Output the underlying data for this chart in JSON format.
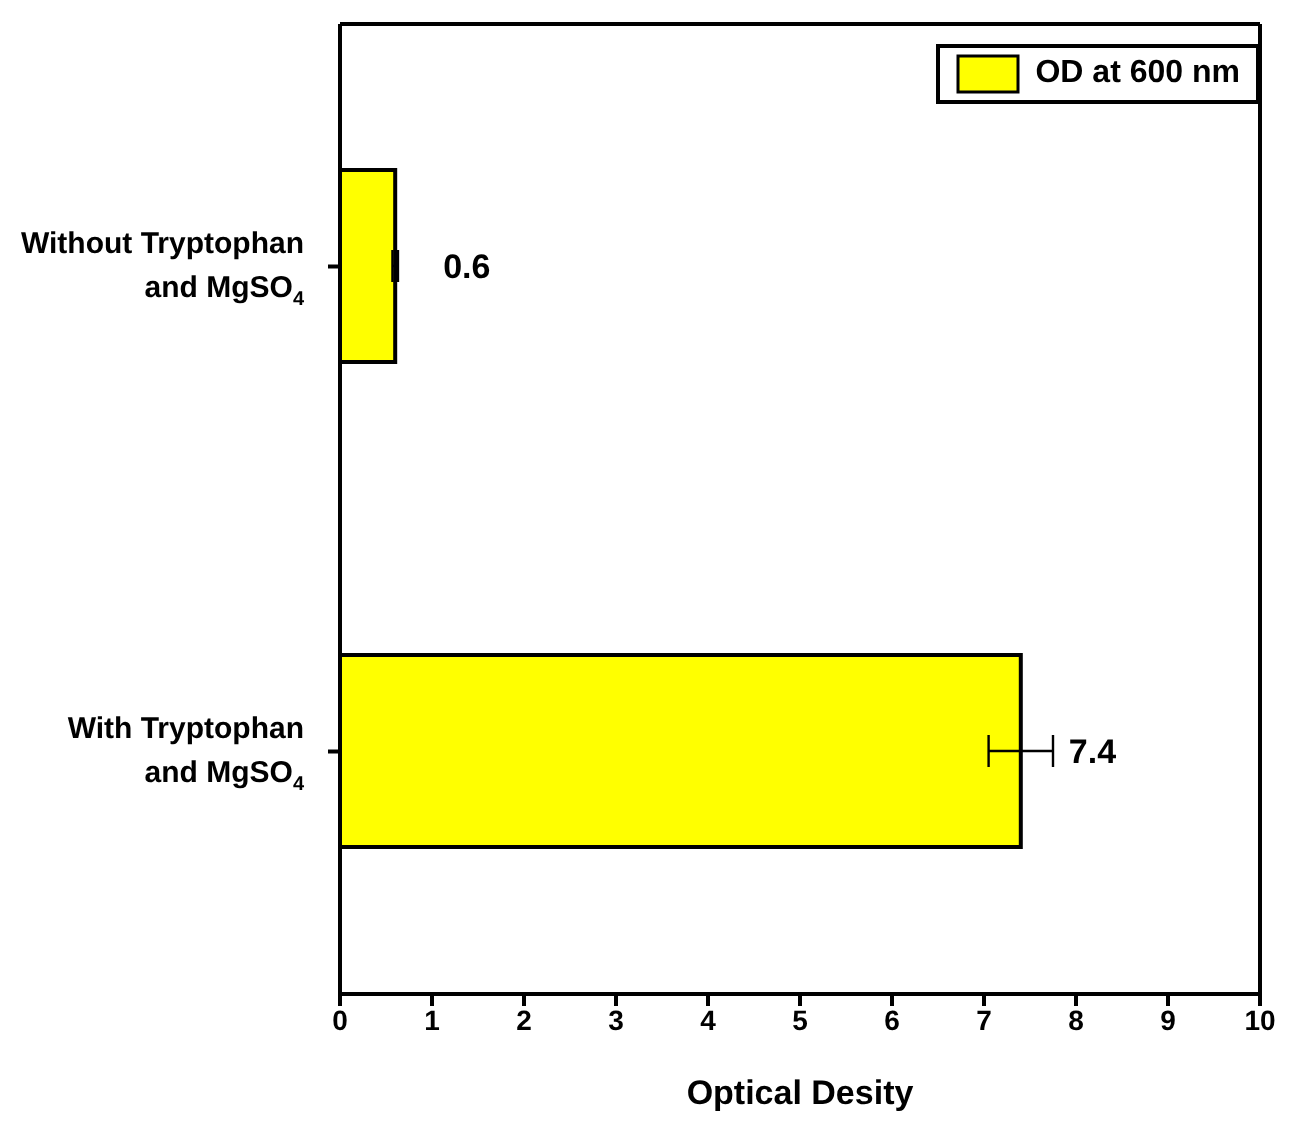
{
  "chart_data": {
    "type": "bar",
    "orientation": "horizontal",
    "xlabel": "Optical Desity",
    "categories": [
      "Without Tryptophan\nand MgSO$_{4}$",
      "With Tryptophan\nand MgSO$_{4}$"
    ],
    "series": [
      {
        "name": "OD at 600 nm",
        "color": "#ffff00",
        "values": [
          0.6,
          7.4
        ],
        "errors": [
          0.03,
          0.35
        ]
      }
    ],
    "xlim": [
      0,
      10
    ],
    "xticks": [
      0,
      1,
      2,
      3,
      4,
      5,
      6,
      7,
      8,
      9,
      10
    ],
    "data_labels": true,
    "legend": "top right"
  }
}
